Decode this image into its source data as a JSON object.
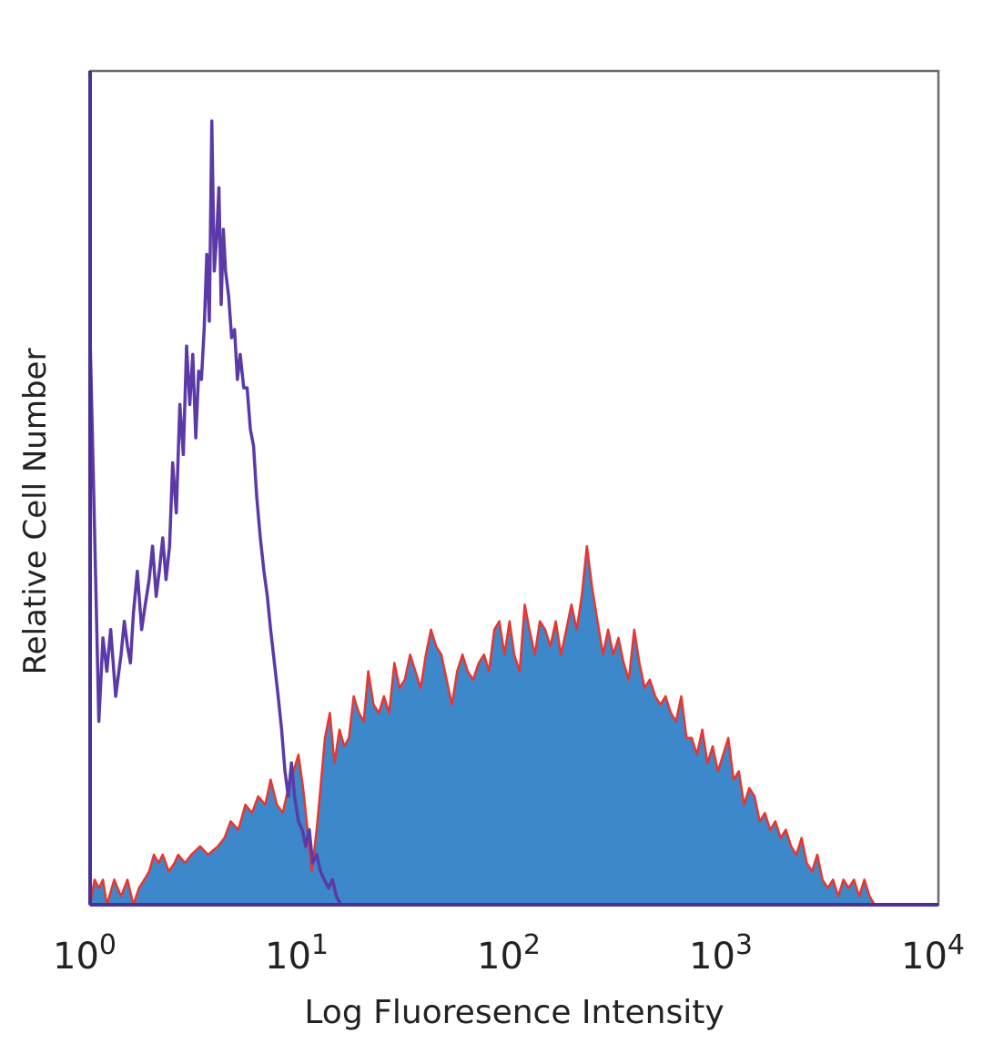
{
  "chart_data": {
    "type": "area",
    "title": "",
    "xlabel": "Log Fluoresence Intensity",
    "ylabel": "Relative Cell Number",
    "x_scale": "log",
    "xlim": [
      1,
      10000
    ],
    "ylim": [
      0,
      100
    ],
    "x_ticks": [
      {
        "base": "10",
        "exp": "0"
      },
      {
        "base": "10",
        "exp": "1"
      },
      {
        "base": "10",
        "exp": "2"
      },
      {
        "base": "10",
        "exp": "3"
      },
      {
        "base": "10",
        "exp": "4"
      }
    ],
    "grid": false,
    "legend": "none",
    "series": [
      {
        "kind": "filled histogram",
        "fill_color": "#3d87cb",
        "stroke_color": "#e8362f",
        "points": [
          [
            1.0,
            0
          ],
          [
            1.05,
            3
          ],
          [
            1.1,
            2
          ],
          [
            1.15,
            3
          ],
          [
            1.2,
            0
          ],
          [
            1.3,
            3
          ],
          [
            1.4,
            1
          ],
          [
            1.5,
            3
          ],
          [
            1.6,
            0
          ],
          [
            1.7,
            2
          ],
          [
            1.8,
            3
          ],
          [
            1.9,
            4
          ],
          [
            2.0,
            6
          ],
          [
            2.1,
            5
          ],
          [
            2.2,
            6
          ],
          [
            2.35,
            4
          ],
          [
            2.5,
            5
          ],
          [
            2.6,
            6
          ],
          [
            2.8,
            5
          ],
          [
            3.0,
            6
          ],
          [
            3.3,
            7
          ],
          [
            3.6,
            6
          ],
          [
            4.0,
            7
          ],
          [
            4.3,
            8
          ],
          [
            4.6,
            10
          ],
          [
            5.0,
            9
          ],
          [
            5.4,
            12
          ],
          [
            5.8,
            11
          ],
          [
            6.2,
            13
          ],
          [
            6.7,
            12
          ],
          [
            7.1,
            15
          ],
          [
            7.6,
            12
          ],
          [
            8.1,
            11
          ],
          [
            8.6,
            14
          ],
          [
            9.1,
            16
          ],
          [
            9.6,
            18
          ],
          [
            10.1,
            14
          ],
          [
            10.6,
            9
          ],
          [
            11.1,
            4
          ],
          [
            11.7,
            9
          ],
          [
            12.2,
            14
          ],
          [
            12.8,
            20
          ],
          [
            13.5,
            23
          ],
          [
            14.2,
            17
          ],
          [
            15.0,
            21
          ],
          [
            15.8,
            19
          ],
          [
            16.6,
            20
          ],
          [
            17.5,
            25
          ],
          [
            18.5,
            23
          ],
          [
            19.5,
            22
          ],
          [
            20.5,
            28
          ],
          [
            21.7,
            24
          ],
          [
            23.0,
            23
          ],
          [
            24.3,
            25
          ],
          [
            25.7,
            23
          ],
          [
            27.2,
            29
          ],
          [
            28.8,
            26
          ],
          [
            30.5,
            27
          ],
          [
            32.3,
            30
          ],
          [
            34.2,
            28
          ],
          [
            36.2,
            26
          ],
          [
            38.3,
            30
          ],
          [
            40.5,
            33
          ],
          [
            42.8,
            31
          ],
          [
            45.3,
            30
          ],
          [
            48.0,
            27
          ],
          [
            50.8,
            24
          ],
          [
            53.8,
            28
          ],
          [
            57.0,
            30
          ],
          [
            60.3,
            28
          ],
          [
            64.0,
            27
          ],
          [
            68.0,
            29
          ],
          [
            72.0,
            30
          ],
          [
            76.0,
            28
          ],
          [
            80.5,
            33
          ],
          [
            85.0,
            34
          ],
          [
            90.0,
            30
          ],
          [
            95.0,
            34
          ],
          [
            100.0,
            30
          ],
          [
            106.0,
            28
          ],
          [
            112.0,
            36
          ],
          [
            118.0,
            33
          ],
          [
            125.0,
            30
          ],
          [
            132.0,
            34
          ],
          [
            140.0,
            33
          ],
          [
            148.0,
            31
          ],
          [
            157.0,
            34
          ],
          [
            166.0,
            30
          ],
          [
            176.0,
            33
          ],
          [
            186.0,
            36
          ],
          [
            197.0,
            33
          ],
          [
            208.0,
            37
          ],
          [
            220.0,
            43
          ],
          [
            233.0,
            38
          ],
          [
            247.0,
            34
          ],
          [
            262.0,
            30
          ],
          [
            277.0,
            33
          ],
          [
            293.0,
            30
          ],
          [
            310.0,
            32
          ],
          [
            328.0,
            29
          ],
          [
            347.0,
            27
          ],
          [
            368.0,
            33
          ],
          [
            389.0,
            29
          ],
          [
            412.0,
            26
          ],
          [
            436.0,
            27
          ],
          [
            462.0,
            25
          ],
          [
            489.0,
            24
          ],
          [
            517.0,
            25
          ],
          [
            547.0,
            23
          ],
          [
            579.0,
            22
          ],
          [
            613.0,
            25
          ],
          [
            649.0,
            20
          ],
          [
            687.0,
            20
          ],
          [
            727.0,
            18
          ],
          [
            770.0,
            21
          ],
          [
            815.0,
            17
          ],
          [
            862.0,
            19
          ],
          [
            913.0,
            16
          ],
          [
            966.0,
            18
          ],
          [
            1022.0,
            20
          ],
          [
            1082.0,
            15
          ],
          [
            1145.0,
            16
          ],
          [
            1212.0,
            12
          ],
          [
            1283.0,
            14
          ],
          [
            1358.0,
            13
          ],
          [
            1437.0,
            10
          ],
          [
            1521.0,
            11
          ],
          [
            1610.0,
            9
          ],
          [
            1704.0,
            10
          ],
          [
            1804.0,
            8
          ],
          [
            1909.0,
            9
          ],
          [
            2021.0,
            7
          ],
          [
            2139.0,
            6
          ],
          [
            2264.0,
            8
          ],
          [
            2396.0,
            5
          ],
          [
            2536.0,
            4
          ],
          [
            2684.0,
            6
          ],
          [
            2841.0,
            3
          ],
          [
            3007.0,
            2
          ],
          [
            3183.0,
            3
          ],
          [
            3369.0,
            1
          ],
          [
            3566.0,
            3
          ],
          [
            3775.0,
            2
          ],
          [
            3995.0,
            3
          ],
          [
            4229.0,
            1
          ],
          [
            4476.0,
            3
          ],
          [
            4738.0,
            1
          ],
          [
            5000.0,
            0
          ]
        ]
      },
      {
        "kind": "open histogram",
        "stroke_color": "#5b3aa8",
        "points": [
          [
            1.0,
            68
          ],
          [
            1.03,
            54
          ],
          [
            1.06,
            40
          ],
          [
            1.1,
            22
          ],
          [
            1.15,
            32
          ],
          [
            1.2,
            28
          ],
          [
            1.25,
            33
          ],
          [
            1.32,
            25
          ],
          [
            1.4,
            30
          ],
          [
            1.45,
            34
          ],
          [
            1.5,
            31
          ],
          [
            1.55,
            29
          ],
          [
            1.6,
            35
          ],
          [
            1.67,
            40
          ],
          [
            1.75,
            33
          ],
          [
            1.82,
            36
          ],
          [
            1.9,
            39
          ],
          [
            1.97,
            43
          ],
          [
            2.05,
            37
          ],
          [
            2.12,
            40
          ],
          [
            2.2,
            44
          ],
          [
            2.28,
            39
          ],
          [
            2.37,
            43
          ],
          [
            2.45,
            53
          ],
          [
            2.55,
            47
          ],
          [
            2.65,
            60
          ],
          [
            2.75,
            54
          ],
          [
            2.85,
            67
          ],
          [
            2.95,
            60
          ],
          [
            3.05,
            66
          ],
          [
            3.15,
            56
          ],
          [
            3.25,
            64
          ],
          [
            3.35,
            63
          ],
          [
            3.45,
            69
          ],
          [
            3.55,
            78
          ],
          [
            3.65,
            70
          ],
          [
            3.75,
            94
          ],
          [
            3.85,
            76
          ],
          [
            3.95,
            80
          ],
          [
            4.05,
            86
          ],
          [
            4.15,
            72
          ],
          [
            4.25,
            81
          ],
          [
            4.35,
            76
          ],
          [
            4.5,
            73
          ],
          [
            4.65,
            68
          ],
          [
            4.8,
            69
          ],
          [
            4.95,
            63
          ],
          [
            5.1,
            66
          ],
          [
            5.3,
            62
          ],
          [
            5.5,
            62
          ],
          [
            5.7,
            57
          ],
          [
            5.9,
            55
          ],
          [
            6.1,
            49
          ],
          [
            6.35,
            44
          ],
          [
            6.6,
            40
          ],
          [
            6.85,
            37
          ],
          [
            7.1,
            33
          ],
          [
            7.4,
            29
          ],
          [
            7.7,
            25
          ],
          [
            8.0,
            21
          ],
          [
            8.3,
            16
          ],
          [
            8.6,
            13
          ],
          [
            8.9,
            17
          ],
          [
            9.2,
            13
          ],
          [
            9.6,
            10
          ],
          [
            10.0,
            9
          ],
          [
            10.4,
            7
          ],
          [
            10.8,
            9
          ],
          [
            11.2,
            5
          ],
          [
            11.7,
            6
          ],
          [
            12.2,
            4
          ],
          [
            12.7,
            3
          ],
          [
            13.3,
            2
          ],
          [
            13.9,
            3
          ],
          [
            14.5,
            1
          ],
          [
            15.2,
            0
          ]
        ]
      }
    ]
  }
}
